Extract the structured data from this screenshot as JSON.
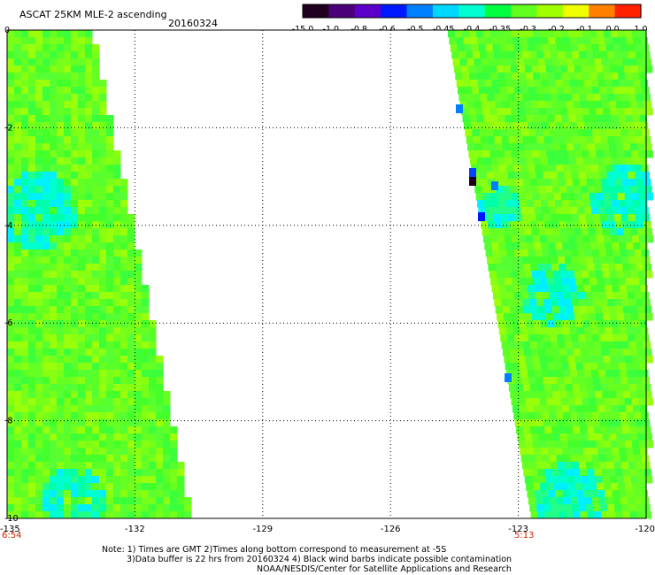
{
  "title": "ASCAT 25KM MLE-2 ascending",
  "date": "20160324",
  "colorbar": {
    "labels": [
      "-15.0",
      "-1.0",
      "-0.8",
      "-0.6",
      "-0.5",
      "-0.45",
      "-0.4",
      "-0.35",
      "-0.3",
      "-0.2",
      "-0.1",
      "0.0",
      "1.0"
    ],
    "colors": [
      "#200020",
      "#4a0078",
      "#5a00c8",
      "#0018ff",
      "#0080ff",
      "#00d8ff",
      "#00ffd0",
      "#00ff40",
      "#60ff20",
      "#a0ff00",
      "#f0ff00",
      "#ff8000",
      "#ff2000"
    ]
  },
  "map": {
    "x_axis": {
      "ticks": [
        "-135",
        "-132",
        "-129",
        "-126",
        "-123",
        "-120"
      ],
      "range": [
        -135,
        -120
      ]
    },
    "y_axis": {
      "ticks": [
        "0",
        "-2",
        "-4",
        "-6",
        "-8",
        "-10"
      ],
      "range": [
        -10,
        0
      ]
    },
    "times": {
      "left": "6:54",
      "right": "5:13"
    }
  },
  "notes": {
    "line1": "Note: 1) Times are GMT 2)Times along bottom correspond to measurement at -5S",
    "line2": "3)Data buffer is 22 hrs from 20160324 4) Black wind barbs indicate possible contamination",
    "line3": "NOAA/NESDIS/Center for Satellite Applications and Research"
  }
}
